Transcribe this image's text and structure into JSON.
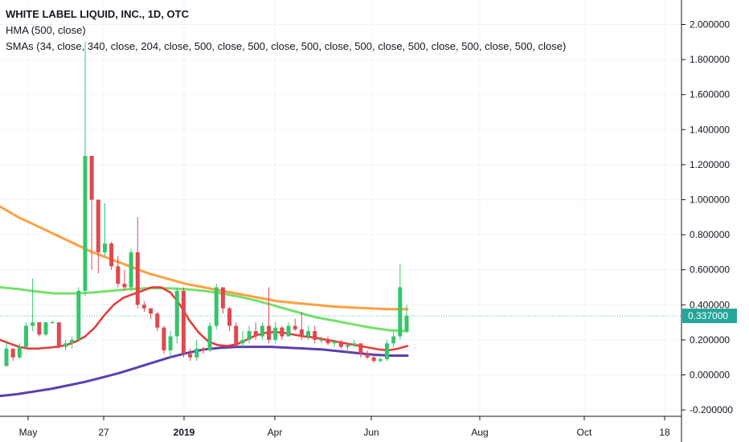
{
  "legend": {
    "title": "WHITE LABEL LIQUID, INC., 1D, OTC",
    "line2": "HMA (500, close)",
    "line3": "SMAs (34, close, 340, close, 204, close, 500, close, 500, close, 500, close, 500, close, 500, close, 500, close, 500, close)"
  },
  "colors": {
    "up": "#26a69a",
    "down": "#ef5350",
    "up_bright": "#35c56b",
    "down_bright": "#e0484f",
    "hma": "#e53935",
    "sma_orange": "#ffa040",
    "sma_green": "#76e06a",
    "sma_purple": "#5c3fb0",
    "price_tag": "#26a69a",
    "grid": "#f0f3fa"
  },
  "chart_data": {
    "type": "candlestick",
    "y_ticks": [
      "2.000000",
      "1.800000",
      "1.600000",
      "1.400000",
      "1.200000",
      "1.000000",
      "0.800000",
      "0.600000",
      "0.400000",
      "0.200000",
      "0.000000",
      "-0.200000"
    ],
    "y_tick_values": [
      2.0,
      1.8,
      1.6,
      1.4,
      1.2,
      1.0,
      0.8,
      0.6,
      0.4,
      0.2,
      0.0,
      -0.2
    ],
    "ylim": [
      -0.25,
      2.1
    ],
    "x_ticks": [
      "May",
      "27",
      "2019",
      "Apr",
      "Jun",
      "Aug",
      "Oct",
      "18"
    ],
    "last_price": "0.337000",
    "last_price_value": 0.337,
    "candles": [
      [
        0.05,
        0.2,
        0.05,
        0.15
      ],
      [
        0.15,
        0.15,
        0.08,
        0.1
      ],
      [
        0.1,
        0.18,
        0.09,
        0.16
      ],
      [
        0.16,
        0.3,
        0.15,
        0.28
      ],
      [
        0.28,
        0.55,
        0.25,
        0.3
      ],
      [
        0.3,
        0.3,
        0.22,
        0.23
      ],
      [
        0.23,
        0.3,
        0.22,
        0.3
      ],
      [
        0.3,
        0.31,
        0.29,
        0.3
      ],
      [
        0.3,
        0.3,
        0.15,
        0.16
      ],
      [
        0.16,
        0.2,
        0.14,
        0.18
      ],
      [
        0.18,
        0.22,
        0.15,
        0.2
      ],
      [
        0.2,
        0.5,
        0.2,
        0.48
      ],
      [
        0.48,
        1.9,
        0.45,
        1.25
      ],
      [
        1.25,
        1.25,
        0.6,
        1.0
      ],
      [
        1.0,
        1.0,
        0.58,
        0.7
      ],
      [
        0.7,
        0.98,
        0.68,
        0.75
      ],
      [
        0.75,
        0.76,
        0.6,
        0.62
      ],
      [
        0.62,
        0.68,
        0.5,
        0.52
      ],
      [
        0.52,
        0.6,
        0.48,
        0.5
      ],
      [
        0.5,
        0.72,
        0.48,
        0.7
      ],
      [
        0.7,
        0.9,
        0.38,
        0.4
      ],
      [
        0.4,
        0.42,
        0.36,
        0.38
      ],
      [
        0.38,
        0.38,
        0.32,
        0.35
      ],
      [
        0.35,
        0.36,
        0.25,
        0.27
      ],
      [
        0.27,
        0.28,
        0.12,
        0.14
      ],
      [
        0.14,
        0.25,
        0.1,
        0.22
      ],
      [
        0.22,
        0.5,
        0.18,
        0.48
      ],
      [
        0.48,
        0.5,
        0.1,
        0.12
      ],
      [
        0.12,
        0.15,
        0.08,
        0.1
      ],
      [
        0.1,
        0.2,
        0.08,
        0.15
      ],
      [
        0.15,
        0.16,
        0.12,
        0.14
      ],
      [
        0.14,
        0.3,
        0.13,
        0.28
      ],
      [
        0.28,
        0.52,
        0.26,
        0.5
      ],
      [
        0.5,
        0.5,
        0.35,
        0.38
      ],
      [
        0.38,
        0.39,
        0.25,
        0.28
      ],
      [
        0.28,
        0.3,
        0.16,
        0.18
      ],
      [
        0.18,
        0.25,
        0.15,
        0.2
      ],
      [
        0.2,
        0.28,
        0.18,
        0.25
      ],
      [
        0.25,
        0.3,
        0.2,
        0.22
      ],
      [
        0.22,
        0.3,
        0.2,
        0.28
      ],
      [
        0.28,
        0.5,
        0.18,
        0.2
      ],
      [
        0.2,
        0.3,
        0.18,
        0.27
      ],
      [
        0.27,
        0.28,
        0.2,
        0.22
      ],
      [
        0.22,
        0.3,
        0.22,
        0.28
      ],
      [
        0.28,
        0.32,
        0.25,
        0.26
      ],
      [
        0.26,
        0.36,
        0.2,
        0.22
      ],
      [
        0.22,
        0.28,
        0.2,
        0.25
      ],
      [
        0.25,
        0.28,
        0.18,
        0.2
      ],
      [
        0.2,
        0.22,
        0.18,
        0.2
      ],
      [
        0.2,
        0.22,
        0.17,
        0.18
      ],
      [
        0.18,
        0.2,
        0.16,
        0.19
      ],
      [
        0.19,
        0.2,
        0.15,
        0.16
      ],
      [
        0.16,
        0.18,
        0.14,
        0.17
      ],
      [
        0.17,
        0.2,
        0.16,
        0.18
      ],
      [
        0.18,
        0.18,
        0.1,
        0.12
      ],
      [
        0.12,
        0.14,
        0.09,
        0.1
      ],
      [
        0.1,
        0.12,
        0.07,
        0.08
      ],
      [
        0.08,
        0.1,
        0.07,
        0.09
      ],
      [
        0.09,
        0.2,
        0.08,
        0.18
      ],
      [
        0.18,
        0.25,
        0.16,
        0.22
      ],
      [
        0.22,
        0.63,
        0.2,
        0.5
      ],
      [
        0.25,
        0.4,
        0.24,
        0.337
      ]
    ],
    "hma_values": [
      0.2,
      0.18,
      0.16,
      0.15,
      0.15,
      0.155,
      0.16,
      0.17,
      0.19,
      0.22,
      0.27,
      0.34,
      0.4,
      0.44,
      0.46,
      0.48,
      0.5,
      0.5,
      0.47,
      0.4,
      0.31,
      0.24,
      0.19,
      0.17,
      0.165,
      0.175,
      0.2,
      0.225,
      0.24,
      0.245,
      0.24,
      0.23,
      0.22,
      0.215,
      0.205,
      0.195,
      0.185,
      0.175,
      0.165,
      0.155,
      0.145,
      0.14,
      0.15,
      0.165
    ],
    "sma_orange_values": [
      0.96,
      0.9,
      0.85,
      0.8,
      0.75,
      0.7,
      0.66,
      0.62,
      0.58,
      0.55,
      0.52,
      0.5,
      0.48,
      0.46,
      0.44,
      0.42,
      0.41,
      0.4,
      0.39,
      0.385,
      0.38,
      0.375,
      0.375
    ],
    "sma_green_values": [
      0.5,
      0.49,
      0.475,
      0.465,
      0.465,
      0.47,
      0.48,
      0.49,
      0.495,
      0.495,
      0.49,
      0.48,
      0.465,
      0.445,
      0.42,
      0.39,
      0.36,
      0.33,
      0.31,
      0.29,
      0.27,
      0.255,
      0.25
    ],
    "sma_purple_values": [
      -0.12,
      -0.11,
      -0.095,
      -0.08,
      -0.06,
      -0.04,
      -0.015,
      0.01,
      0.04,
      0.07,
      0.1,
      0.125,
      0.145,
      0.155,
      0.16,
      0.16,
      0.16,
      0.155,
      0.15,
      0.145,
      0.135,
      0.125,
      0.115,
      0.11,
      0.11
    ]
  }
}
